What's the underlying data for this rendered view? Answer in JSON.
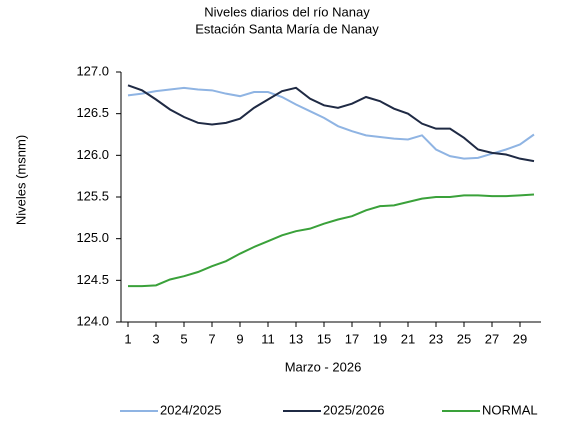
{
  "chart_data": {
    "type": "line",
    "title": "Niveles  diarios del río Nanay",
    "subtitle": "Estación Santa María de Nanay",
    "xlabel": "Marzo - 2026",
    "ylabel": "Niveles  (msnm)",
    "x": [
      1,
      2,
      3,
      4,
      5,
      6,
      7,
      8,
      9,
      10,
      11,
      12,
      13,
      14,
      15,
      16,
      17,
      18,
      19,
      20,
      21,
      22,
      23,
      24,
      25,
      26,
      27,
      28,
      29,
      30
    ],
    "xlim": [
      0.5,
      30.5
    ],
    "xticks": [
      1,
      3,
      5,
      7,
      9,
      11,
      13,
      15,
      17,
      19,
      21,
      23,
      25,
      27,
      29
    ],
    "ylim": [
      124,
      127
    ],
    "yticks": [
      {
        "value": 124,
        "label": "124.0"
      },
      124.5,
      {
        "value": 125,
        "label": "125.0"
      },
      125.5,
      {
        "value": 126,
        "label": "126.0"
      },
      126.5,
      {
        "value": 127,
        "label": "127.0"
      }
    ],
    "grid": false,
    "legend": "bottom",
    "series": [
      {
        "name": "2024/2025",
        "color": "#8fb4e3",
        "values": [
          126.72,
          126.74,
          126.77,
          126.79,
          126.81,
          126.79,
          126.78,
          126.74,
          126.71,
          126.76,
          126.76,
          126.7,
          126.61,
          126.53,
          126.45,
          126.35,
          126.29,
          126.24,
          126.22,
          126.2,
          126.19,
          126.24,
          126.07,
          125.99,
          125.96,
          125.97,
          126.02,
          126.07,
          126.13,
          126.25
        ]
      },
      {
        "name": "2025/2026",
        "color": "#1f2a44",
        "values": [
          126.84,
          126.78,
          126.67,
          126.55,
          126.46,
          126.39,
          126.37,
          126.39,
          126.44,
          126.57,
          126.67,
          126.77,
          126.81,
          126.68,
          126.6,
          126.57,
          126.62,
          126.7,
          126.65,
          126.56,
          126.5,
          126.38,
          126.32,
          126.32,
          126.21,
          126.07,
          126.03,
          126.01,
          125.96,
          125.93
        ]
      },
      {
        "name": "NORMAL",
        "color": "#3aa13a",
        "values": [
          124.43,
          124.43,
          124.44,
          124.51,
          124.55,
          124.6,
          124.67,
          124.73,
          124.82,
          124.9,
          124.97,
          125.04,
          125.09,
          125.12,
          125.18,
          125.23,
          125.27,
          125.34,
          125.39,
          125.4,
          125.44,
          125.48,
          125.5,
          125.5,
          125.52,
          125.52,
          125.51,
          125.51,
          125.52,
          125.53
        ]
      }
    ]
  }
}
